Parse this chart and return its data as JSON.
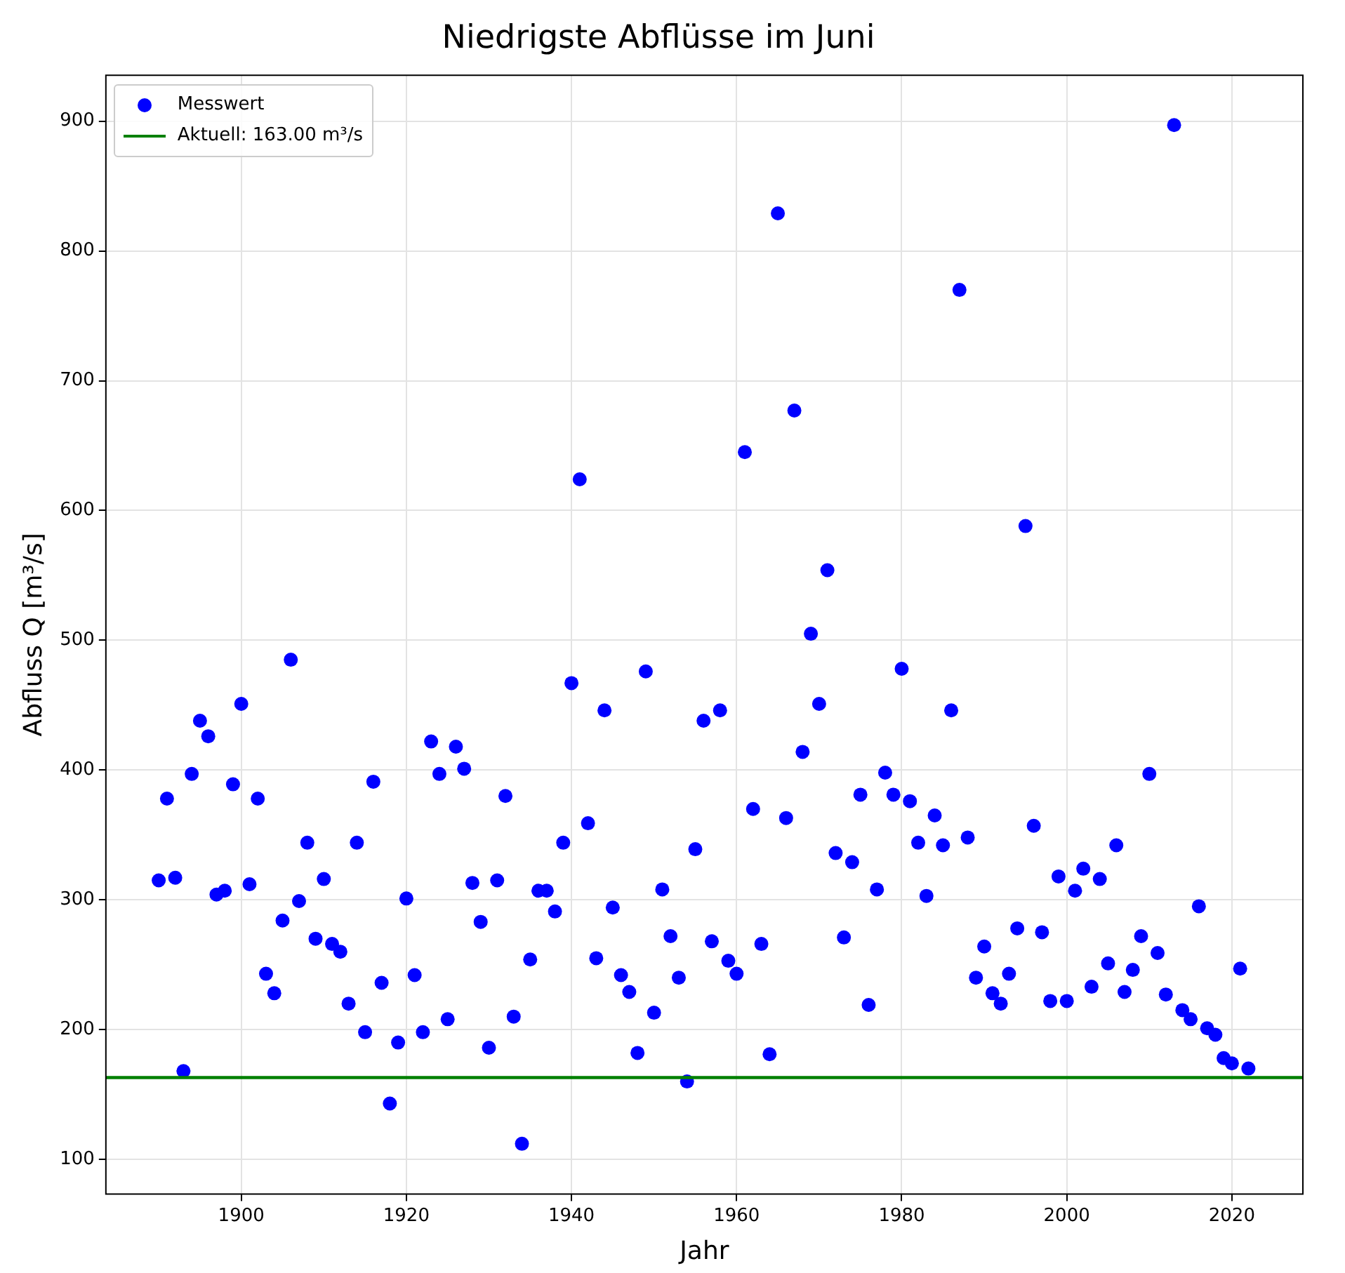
{
  "chart_data": {
    "type": "scatter",
    "title": "Niedrigste Abflüsse im Juni",
    "xlabel": "Jahr",
    "ylabel": "Abfluss Q [m³/s]",
    "x": [
      1890,
      1891,
      1892,
      1893,
      1894,
      1895,
      1896,
      1897,
      1898,
      1899,
      1900,
      1901,
      1902,
      1903,
      1904,
      1905,
      1906,
      1907,
      1908,
      1909,
      1910,
      1911,
      1912,
      1913,
      1914,
      1915,
      1916,
      1917,
      1918,
      1919,
      1920,
      1921,
      1922,
      1923,
      1924,
      1925,
      1926,
      1927,
      1928,
      1929,
      1930,
      1931,
      1932,
      1933,
      1934,
      1935,
      1936,
      1937,
      1938,
      1939,
      1940,
      1941,
      1942,
      1943,
      1944,
      1945,
      1946,
      1947,
      1948,
      1949,
      1950,
      1951,
      1952,
      1953,
      1954,
      1955,
      1956,
      1957,
      1958,
      1959,
      1960,
      1961,
      1962,
      1963,
      1964,
      1965,
      1966,
      1967,
      1968,
      1969,
      1970,
      1971,
      1972,
      1973,
      1974,
      1975,
      1976,
      1977,
      1978,
      1979,
      1980,
      1981,
      1982,
      1983,
      1984,
      1985,
      1986,
      1987,
      1988,
      1989,
      1990,
      1991,
      1992,
      1993,
      1994,
      1995,
      1996,
      1997,
      1998,
      1999,
      2000,
      2001,
      2002,
      2003,
      2004,
      2005,
      2006,
      2007,
      2008,
      2009,
      2010,
      2011,
      2012,
      2013,
      2014,
      2015,
      2016,
      2017,
      2018,
      2019,
      2020,
      2021,
      2022
    ],
    "series": [
      {
        "name": "Messwert",
        "color": "#0000ff",
        "values": [
          315,
          378,
          317,
          168,
          397,
          438,
          426,
          304,
          307,
          389,
          451,
          312,
          378,
          243,
          228,
          284,
          485,
          299,
          344,
          270,
          316,
          266,
          260,
          220,
          344,
          198,
          391,
          236,
          143,
          190,
          301,
          242,
          198,
          422,
          397,
          208,
          418,
          401,
          313,
          283,
          186,
          315,
          380,
          210,
          112,
          254,
          307,
          307,
          291,
          344,
          467,
          624,
          359,
          255,
          446,
          294,
          242,
          229,
          182,
          476,
          213,
          308,
          272,
          240,
          160,
          339,
          438,
          268,
          446,
          253,
          243,
          645,
          370,
          266,
          181,
          829,
          363,
          677,
          414,
          505,
          451,
          554,
          336,
          271,
          329,
          381,
          219,
          308,
          398,
          381,
          478,
          376,
          344,
          303,
          365,
          342,
          446,
          770,
          348,
          240,
          264,
          228,
          220,
          243,
          278,
          588,
          357,
          275,
          222,
          318,
          222,
          307,
          324,
          233,
          316,
          251,
          342,
          229,
          246,
          272,
          397,
          259,
          227,
          897,
          215,
          208,
          295,
          201,
          196,
          178,
          174,
          247,
          170
        ]
      }
    ],
    "ref_lines": [
      {
        "axis": "y",
        "value": 163,
        "label": "Aktuell: 163.00 m³/s",
        "color": "#008000",
        "line_style": "solid"
      }
    ],
    "xlim": [
      1883.6,
      2028.6
    ],
    "ylim": [
      73.2,
      935.4
    ],
    "xticks": [
      1900,
      1920,
      1940,
      1960,
      1980,
      2000,
      2020
    ],
    "yticks": [
      100,
      200,
      300,
      400,
      500,
      600,
      700,
      800,
      900
    ],
    "grid": true,
    "legend": "top left",
    "marker": "circle"
  }
}
